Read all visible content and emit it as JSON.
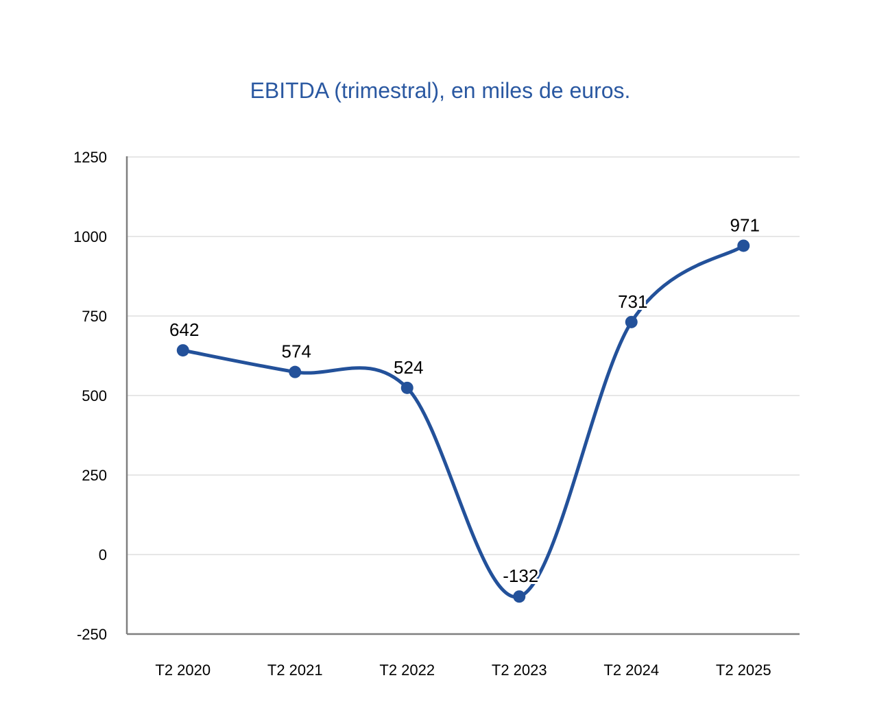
{
  "chart_data": {
    "type": "line",
    "title": "EBITDA (trimestral), en miles de euros.",
    "categories": [
      "T2 2020",
      "T2 2021",
      "T2 2022",
      "T2 2023",
      "T2 2024",
      "T2 2025"
    ],
    "series": [
      {
        "values": [
          642,
          574,
          524,
          -132,
          731,
          971
        ]
      }
    ],
    "ylim": [
      -250,
      1250
    ],
    "yticks": [
      1250,
      1000,
      750,
      500,
      250,
      0,
      -250
    ],
    "grid": true,
    "smooth": true,
    "line_color": "#23519a",
    "title_color": "#2a58a1",
    "grid_color": "#dddddd",
    "axis_color": "#7f7f7f"
  }
}
